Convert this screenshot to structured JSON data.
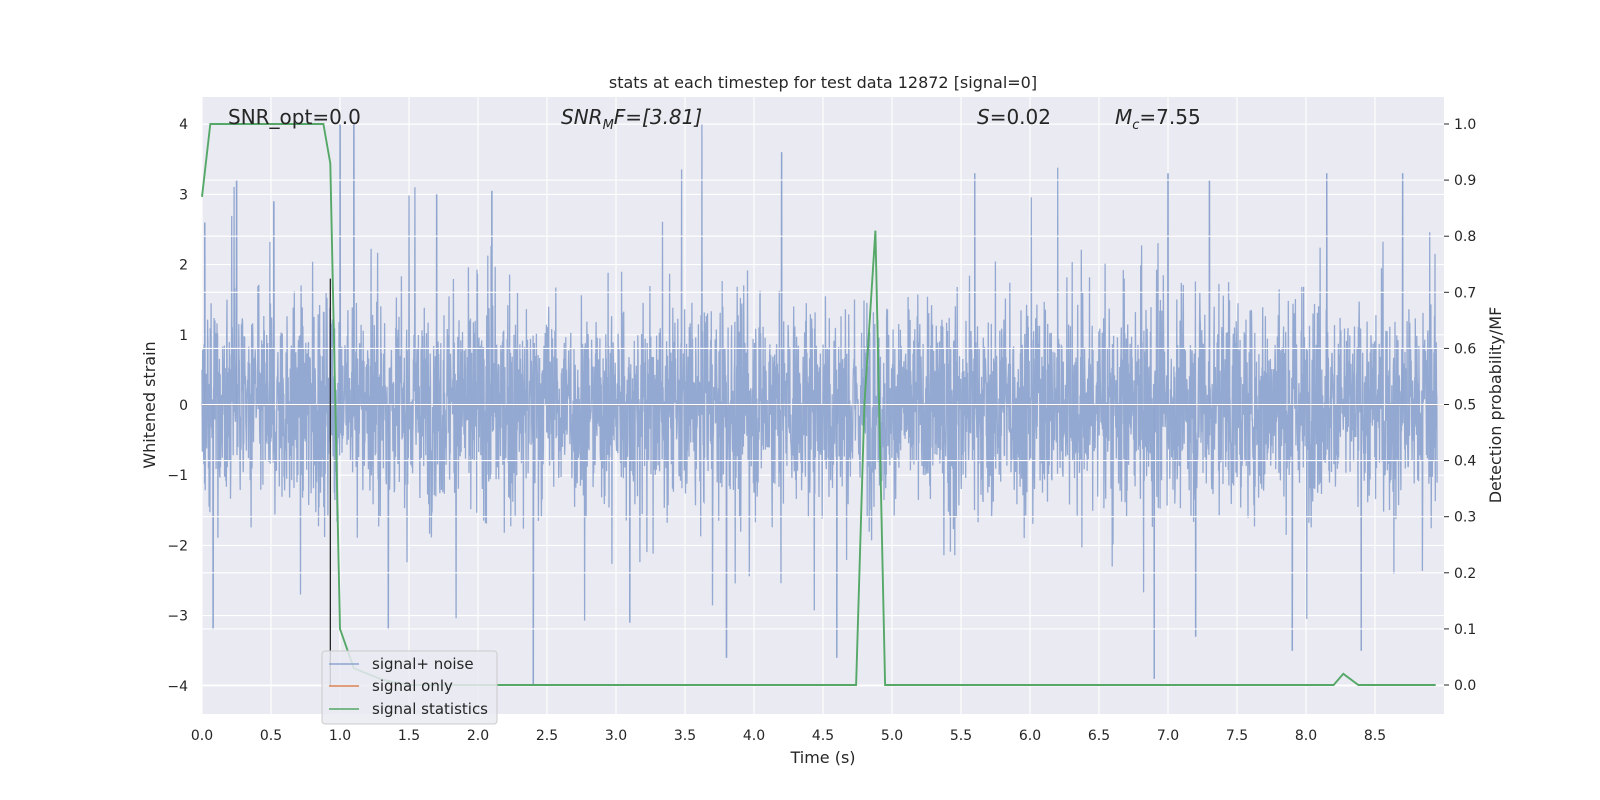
{
  "chart_data": {
    "type": "line",
    "title": "stats at each timestep for test data 12872 [signal=0]",
    "xlabel": "Time (s)",
    "ylabel": "Whitened strain",
    "ylabel_right": "Detection probability/MF",
    "xlim": [
      0.0,
      9.0
    ],
    "ylim": [
      -4.4,
      4.4
    ],
    "ylim_right": [
      -0.05,
      1.05
    ],
    "x_ticks": [
      "0.0",
      "0.5",
      "1.0",
      "1.5",
      "2.0",
      "2.5",
      "3.0",
      "3.5",
      "4.0",
      "4.5",
      "5.0",
      "5.5",
      "6.0",
      "6.5",
      "7.0",
      "7.5",
      "8.0",
      "8.5"
    ],
    "y_ticks": [
      "4",
      "3",
      "2",
      "1",
      "0",
      "−1",
      "−2",
      "−3",
      "−4"
    ],
    "y_ticks_right": [
      "1.0",
      "0.9",
      "0.8",
      "0.7",
      "0.6",
      "0.5",
      "0.4",
      "0.3",
      "0.2",
      "0.1",
      "0.0"
    ],
    "grid": true,
    "legend_position": "lower-left",
    "annotations": {
      "snr_opt": "SNR_opt=0.0",
      "snr_mf_base": "SNR",
      "snr_mf_sub": "M",
      "snr_mf_tail": "F=[3.81]",
      "s_value_label": "S",
      "s_value": "=0.02",
      "mc_label": "M",
      "mc_sub": "c",
      "mc_value": "=7.55"
    },
    "series": [
      {
        "name": "signal+ noise",
        "color": "#8fa5cf",
        "axis": "left",
        "description_points": "whitened noise, dense ~|1.5| band with peaks",
        "peaks": [
          {
            "x": 0.02,
            "y": 2.6
          },
          {
            "x": 0.08,
            "y": -3.2
          },
          {
            "x": 0.25,
            "y": 3.2
          },
          {
            "x": 0.52,
            "y": 2.9
          },
          {
            "x": 1.0,
            "y": 4.0
          },
          {
            "x": 1.1,
            "y": 4.0
          },
          {
            "x": 1.35,
            "y": -3.2
          },
          {
            "x": 1.7,
            "y": 3.0
          },
          {
            "x": 2.1,
            "y": 3.05
          },
          {
            "x": 2.4,
            "y": -4.0
          },
          {
            "x": 3.1,
            "y": -3.1
          },
          {
            "x": 3.8,
            "y": -3.6
          },
          {
            "x": 4.2,
            "y": 3.6
          },
          {
            "x": 4.6,
            "y": -3.6
          },
          {
            "x": 5.6,
            "y": 3.3
          },
          {
            "x": 6.9,
            "y": -3.9
          },
          {
            "x": 7.0,
            "y": 3.3
          },
          {
            "x": 7.2,
            "y": -3.3
          },
          {
            "x": 7.3,
            "y": 3.2
          },
          {
            "x": 7.9,
            "y": -3.5
          },
          {
            "x": 8.15,
            "y": 3.3
          },
          {
            "x": 8.4,
            "y": -3.5
          },
          {
            "x": 8.7,
            "y": 3.3
          }
        ]
      },
      {
        "name": "signal only",
        "color": "#dd8452",
        "axis": "left",
        "x": [
          0.0,
          9.0
        ],
        "y": [
          0.0,
          0.0
        ]
      },
      {
        "name": "signal statistics",
        "color": "#55a868",
        "axis": "right",
        "x": [
          0.0,
          0.06,
          0.1,
          0.2,
          0.5,
          0.88,
          0.93,
          1.0,
          1.1,
          1.3,
          1.5,
          2.0,
          4.0,
          4.74,
          4.8,
          4.88,
          4.95,
          5.0,
          6.0,
          8.0,
          8.2,
          8.27,
          8.38,
          8.94
        ],
        "y": [
          0.87,
          1.0,
          1.0,
          1.0,
          1.0,
          1.0,
          0.93,
          0.1,
          0.03,
          0.01,
          0.0,
          0.0,
          0.0,
          0.0,
          0.5,
          0.81,
          0.0,
          0.0,
          0.0,
          0.0,
          0.0,
          0.02,
          0.0,
          0.0
        ]
      }
    ],
    "vline": {
      "x": 0.93,
      "color": "#262626"
    }
  }
}
